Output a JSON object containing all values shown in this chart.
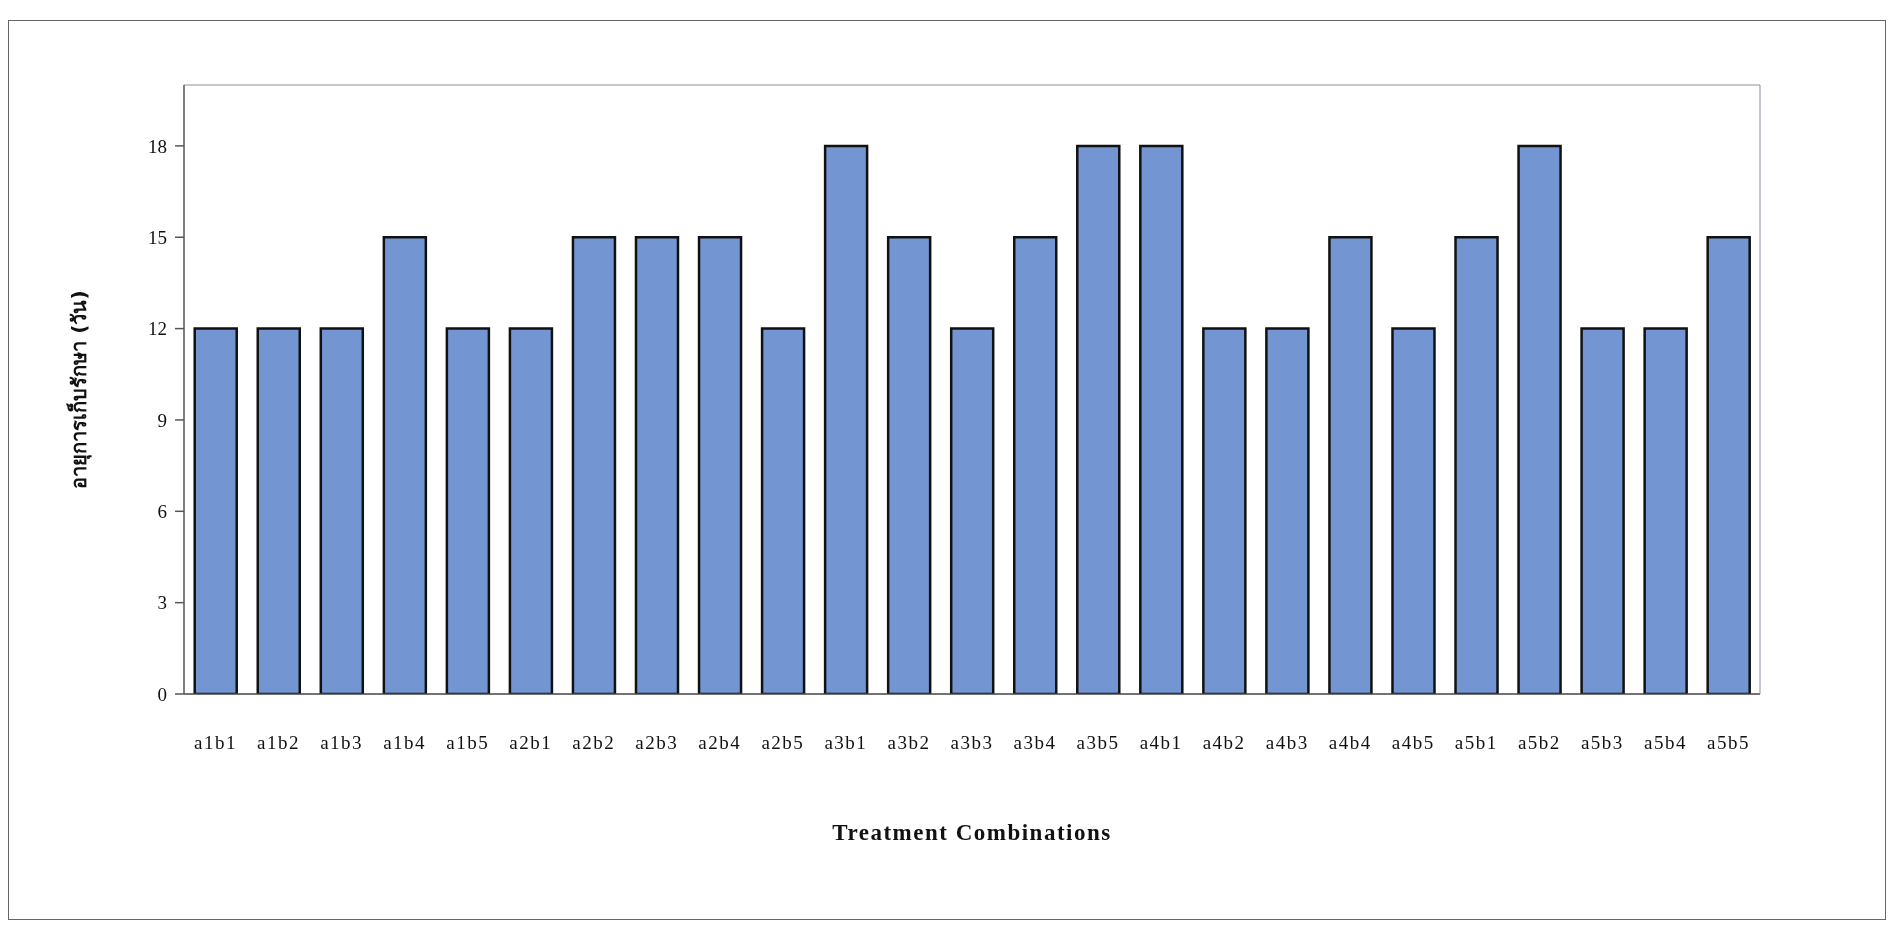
{
  "chart_data": {
    "type": "bar",
    "xlabel": "Treatment Combinations",
    "ylabel": "อายุการเก็บรักษา (วัน)",
    "categories": [
      "a1b1",
      "a1b2",
      "a1b3",
      "a1b4",
      "a1b5",
      "a2b1",
      "a2b2",
      "a2b3",
      "a2b4",
      "a2b5",
      "a3b1",
      "a3b2",
      "a3b3",
      "a3b4",
      "a3b5",
      "a4b1",
      "a4b2",
      "a4b3",
      "a4b4",
      "a4b5",
      "a5b1",
      "a5b2",
      "a5b3",
      "a5b4",
      "a5b5"
    ],
    "values": [
      12,
      12,
      12,
      15,
      12,
      12,
      15,
      15,
      15,
      12,
      18,
      15,
      12,
      15,
      18,
      18,
      12,
      12,
      15,
      12,
      15,
      18,
      12,
      12,
      15
    ],
    "color": "#7396d3",
    "ylim": [
      0,
      20
    ],
    "yticks": [
      0,
      3,
      6,
      9,
      12,
      15,
      18
    ]
  }
}
